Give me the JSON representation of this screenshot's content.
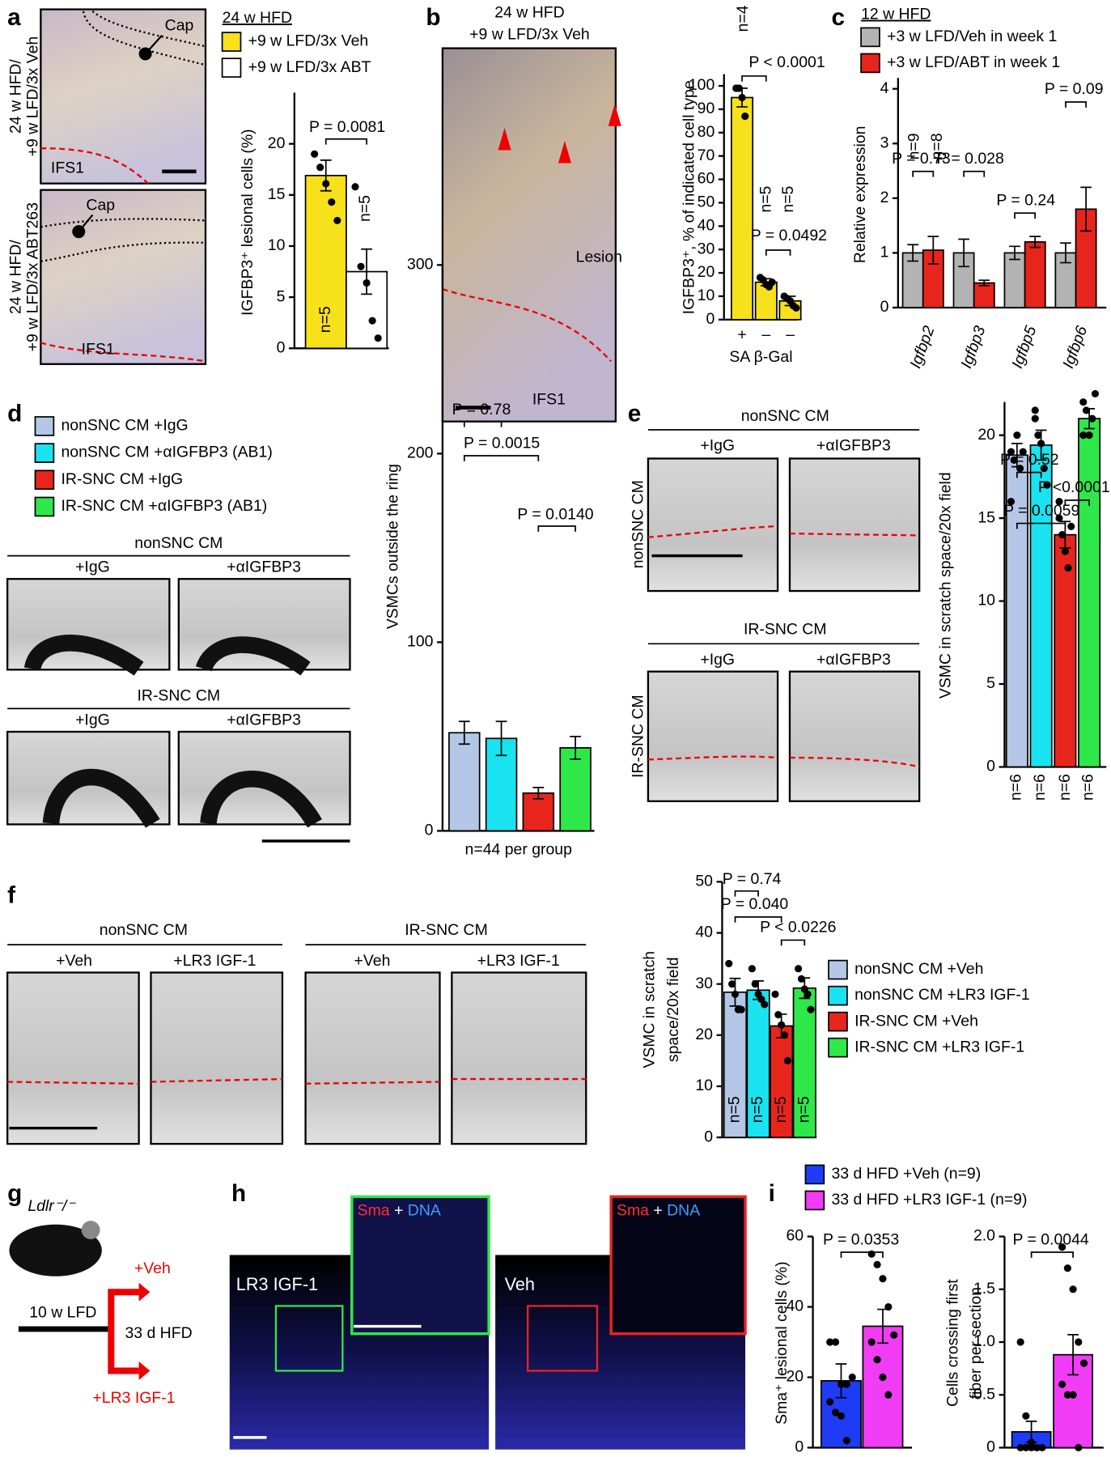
{
  "panels": {
    "a": {
      "letter": "a",
      "side_top": [
        "24 w HFD/",
        "+9 w LFD/3x Veh"
      ],
      "side_bottom": [
        "24 w HFD/",
        "+9 w LFD/3x ABT263"
      ],
      "cap_top": "Cap",
      "cap_bottom": "Cap",
      "ifs_top": "IFS1",
      "ifs_bottom": "IFS1"
    },
    "b": {
      "letter": "b",
      "title": [
        "24 w HFD",
        "+9 w LFD/3x Veh"
      ],
      "lesion": "Lesion",
      "ifs": "IFS1"
    },
    "c": {
      "letter": "c"
    },
    "d": {
      "letter": "d",
      "top_group": "nonSNC CM",
      "bottom_group": "IR-SNC CM",
      "top_cols": [
        "+IgG",
        "+αIGFBP3"
      ],
      "bottom_cols": [
        "+IgG",
        "+αIGFBP3"
      ]
    },
    "e": {
      "letter": "e",
      "top_group": "nonSNC CM",
      "bottom_group": "IR-SNC CM",
      "top_cols": [
        "+IgG",
        "+αIGFBP3"
      ],
      "bottom_cols": [
        "+IgG",
        "+αIGFBP3"
      ],
      "side": [
        "nonSNC CM",
        "IR-SNC CM"
      ]
    },
    "f": {
      "letter": "f",
      "left_group": "nonSNC CM",
      "right_group": "IR-SNC CM",
      "left_cols": [
        "+Veh",
        "+LR3 IGF-1"
      ],
      "right_cols": [
        "+Veh",
        "+LR3 IGF-1"
      ]
    },
    "g": {
      "letter": "g",
      "mouse": "Ldlr⁻/⁻",
      "lfd": "10 w LFD",
      "hfd": "33 d HFD",
      "veh": "+Veh",
      "igf": "+LR3 IGF-1"
    },
    "h": {
      "letter": "h",
      "stain": [
        "Sma",
        "+",
        "DNA"
      ],
      "left": "LR3 IGF-1",
      "right": "Veh"
    },
    "i": {
      "letter": "i"
    }
  },
  "chart_data": [
    {
      "type": "bar",
      "legend_title": "24 w HFD",
      "legend": [
        "+9 w LFD/3x Veh",
        "+9 w LFD/3x ABT"
      ],
      "colors": [
        "#f7e11b",
        "#ffffff"
      ],
      "ylabel": "IGFBP3⁺ lesional cells (%)",
      "values": [
        16.9,
        7.5
      ],
      "errors": [
        1.5,
        2.2
      ],
      "points": [
        [
          19.0,
          17.7,
          16.1,
          14.3,
          12.5
        ],
        [
          15.8,
          8.0,
          6.4,
          2.7,
          1.0
        ]
      ],
      "ylim": [
        0,
        25
      ],
      "yticks": [
        0,
        5,
        10,
        15,
        20
      ],
      "annotations": [
        "P = 0.0081"
      ],
      "n_labels": [
        "n=5",
        "n=5"
      ]
    },
    {
      "type": "bar",
      "colors": [
        "#f7e11b",
        "#f7e11b",
        "#f7e11b"
      ],
      "ylabel": "IGFBP3⁺, % of indicated cell type",
      "xlabel": "SA β-Gal",
      "categories": [
        "+",
        "–",
        "–"
      ],
      "values": [
        95,
        16,
        8
      ],
      "errors": [
        4,
        1.5,
        2
      ],
      "points": [
        [
          99,
          99,
          95,
          87
        ],
        [
          18,
          17,
          15,
          14,
          16
        ],
        [
          10,
          9,
          8,
          6,
          5
        ]
      ],
      "ylim": [
        0,
        105
      ],
      "yticks": [
        0,
        10,
        20,
        30,
        40,
        50,
        60,
        70,
        80,
        90,
        100
      ],
      "annotations": [
        "P < 0.0001",
        "P = 0.0492"
      ],
      "n_labels": [
        "n=4",
        "n=5",
        "n=5"
      ]
    },
    {
      "type": "grouped-bar",
      "legend_title": "12 w HFD",
      "ylabel": "Relative expression",
      "categories": [
        "Igfbp2",
        "Igfbp3",
        "Igfbp5",
        "Igfbp6"
      ],
      "series": [
        {
          "name": "+3 w LFD/Veh in week 1",
          "color": "#b3b3b3",
          "values": [
            1.0,
            1.0,
            1.0,
            1.0
          ],
          "errors": [
            0.15,
            0.25,
            0.12,
            0.18
          ]
        },
        {
          "name": "+3 w LFD/ABT in week 1",
          "color": "#e8251d",
          "values": [
            1.05,
            0.45,
            1.2,
            1.8
          ],
          "errors": [
            0.25,
            0.05,
            0.1,
            0.4
          ]
        }
      ],
      "ylim": [
        0,
        4.2
      ],
      "yticks": [
        0,
        1,
        2,
        3,
        4
      ],
      "annotations": [
        "P = 0.73",
        "P = 0.028",
        "P = 0.24",
        "P = 0.09"
      ],
      "n_labels": [
        "n=9",
        "n=8"
      ]
    },
    {
      "type": "bar",
      "legend": [
        "nonSNC CM +IgG",
        "nonSNC CM +αIGFBP3 (AB1)",
        "IR-SNC CM +IgG",
        "IR-SNC CM +αIGFBP3 (AB1)"
      ],
      "colors": [
        "#b4c7e7",
        "#19e3f0",
        "#e8251d",
        "#2ee84a"
      ],
      "ylabel": "VSMCs outside the ring",
      "xlabel": "n=44 per group",
      "values": [
        52,
        49,
        20,
        44
      ],
      "errors": [
        6,
        9,
        3,
        6
      ],
      "ylim": [
        0,
        300
      ],
      "yticks": [
        0,
        100,
        200,
        300
      ],
      "annotations": [
        "P = 0.78",
        "P = 0.0015",
        "P = 0.0140"
      ]
    },
    {
      "type": "bar",
      "colors": [
        "#b4c7e7",
        "#19e3f0",
        "#e8251d",
        "#2ee84a"
      ],
      "ylabel": "VSMC in scratch space/20x field",
      "values": [
        18.8,
        19.4,
        14.0,
        21.0
      ],
      "errors": [
        0.7,
        0.9,
        0.8,
        0.6
      ],
      "points": [
        [
          19,
          18.5,
          20,
          18,
          19,
          16
        ],
        [
          21,
          20,
          19.5,
          18,
          17,
          21.5
        ],
        [
          15,
          14,
          13,
          12,
          14.5,
          16
        ],
        [
          22,
          21.5,
          20,
          21,
          22.5,
          20
        ]
      ],
      "ylim": [
        0,
        22
      ],
      "yticks": [
        0,
        5,
        10,
        15,
        20
      ],
      "annotations": [
        "P = 0.52",
        "P = 0.0059",
        "P <0.0001"
      ],
      "n_labels": [
        "n=6",
        "n=6",
        "n=6",
        "n=6"
      ]
    },
    {
      "type": "bar",
      "legend": [
        "nonSNC CM +Veh",
        "nonSNC CM +LR3 IGF-1",
        "IR-SNC CM +Veh",
        "IR-SNC CM +LR3 IGF-1"
      ],
      "colors": [
        "#b4c7e7",
        "#19e3f0",
        "#e8251d",
        "#2ee84a"
      ],
      "ylabel": [
        "VSMC in scratch",
        "space/20x field"
      ],
      "values": [
        28.4,
        28.8,
        21.8,
        29.2
      ],
      "errors": [
        2.7,
        1.8,
        2.3,
        2.0
      ],
      "points": [
        [
          34,
          30,
          28,
          25,
          25
        ],
        [
          33,
          30,
          28,
          27,
          26
        ],
        [
          28,
          24,
          22,
          20,
          15
        ],
        [
          33,
          31,
          29,
          28,
          25
        ]
      ],
      "ylim": [
        0,
        50
      ],
      "yticks": [
        0,
        10,
        20,
        30,
        40,
        50
      ],
      "annotations": [
        "P = 0.74",
        "P = 0.040",
        "P < 0.0226"
      ],
      "n_labels": [
        "n=5",
        "n=5",
        "n=5",
        "n=5"
      ]
    },
    {
      "type": "bar",
      "legend": [
        "33 d HFD +Veh (n=9)",
        "33 d HFD +LR3 IGF-1 (n=9)"
      ],
      "colors": [
        "#1f3cf5",
        "#f13cf5"
      ],
      "ylabel": "Sma⁺ lesional cells (%)",
      "values": [
        19,
        34.5
      ],
      "errors": [
        4.8,
        4.8
      ],
      "points": [
        [
          30,
          30,
          18,
          18,
          20,
          13,
          10,
          9,
          2
        ],
        [
          55,
          52,
          48,
          40,
          32,
          30,
          25,
          20,
          15
        ]
      ],
      "ylim": [
        0,
        60
      ],
      "yticks": [
        0,
        20,
        40,
        60
      ],
      "annotations": [
        "P = 0.0353"
      ]
    },
    {
      "type": "bar",
      "colors": [
        "#1f3cf5",
        "#f13cf5"
      ],
      "ylabel": [
        "Cells crossing first",
        "fiber per section"
      ],
      "values": [
        0.15,
        0.88
      ],
      "errors": [
        0.1,
        0.19
      ],
      "points": [
        [
          1.0,
          0.3,
          0.05,
          0,
          0,
          0,
          0,
          0,
          0
        ],
        [
          1.9,
          1.7,
          1.5,
          1.0,
          0.8,
          0.6,
          0.5,
          0.5,
          0
        ]
      ],
      "ylim": [
        0,
        2
      ],
      "yticks": [
        0,
        0.5,
        {
          "value": 1,
          "label": "1.0"
        },
        1.5,
        {
          "value": 2,
          "label": "2.0"
        }
      ],
      "annotations": [
        "P = 0.0044"
      ]
    }
  ]
}
